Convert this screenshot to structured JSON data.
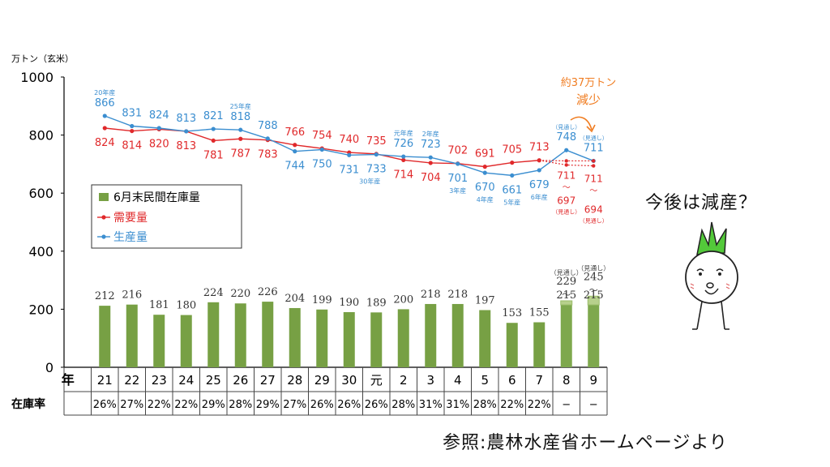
{
  "chart_data": {
    "type": "bar",
    "unit_label": "万トン（玄米）",
    "ylim": [
      0,
      1000
    ],
    "yticks": [
      0,
      200,
      400,
      600,
      800,
      1000
    ],
    "x_header": "年",
    "categories": [
      "21",
      "22",
      "23",
      "24",
      "25",
      "26",
      "27",
      "28",
      "29",
      "30",
      "元",
      "2",
      "3",
      "4",
      "5",
      "6",
      "7",
      "8",
      "9"
    ],
    "legend": [
      "6月末民間在庫量",
      "需要量",
      "生産量"
    ],
    "series": [
      {
        "name": "6月末民間在庫量",
        "values": [
          212,
          216,
          181,
          180,
          224,
          220,
          226,
          204,
          199,
          190,
          189,
          200,
          218,
          218,
          197,
          153,
          155,
          215,
          215
        ]
      },
      {
        "name": "需要量",
        "values": [
          824,
          814,
          820,
          813,
          781,
          787,
          783,
          766,
          754,
          740,
          735,
          714,
          704,
          702,
          691,
          705,
          713,
          null,
          null
        ]
      },
      {
        "name": "生産量",
        "values": [
          866,
          831,
          824,
          813,
          821,
          818,
          788,
          744,
          750,
          731,
          733,
          726,
          723,
          701,
          670,
          661,
          679,
          748,
          711
        ]
      }
    ],
    "stock_range_upper": [
      null,
      null,
      null,
      null,
      null,
      null,
      null,
      null,
      null,
      null,
      null,
      null,
      null,
      null,
      null,
      null,
      null,
      229,
      245
    ],
    "demand_projection": {
      "low": [
        697,
        694
      ],
      "high": [
        711,
        711
      ]
    },
    "stock_ratio_label": "在庫率",
    "stock_ratio": [
      "26%",
      "27%",
      "22%",
      "22%",
      "29%",
      "28%",
      "29%",
      "27%",
      "26%",
      "26%",
      "26%",
      "28%",
      "31%",
      "31%",
      "28%",
      "22%",
      "22%",
      "−",
      "−"
    ],
    "annotations": {
      "prod_20": "20年産",
      "prod_25": "25年産",
      "prod_30": "30年産",
      "prod_gan": "元年産",
      "prod_2": "2年産",
      "prod_3": "3年産",
      "prod_4": "4年産",
      "prod_5": "5年産",
      "prod_6": "6年産",
      "outlook": "（見通し）",
      "tilde": "〜",
      "handwritten_1": "約37万トン",
      "handwritten_2": "減少"
    }
  },
  "side_text": "今後は減産？",
  "source_text": "参照:農林水産省ホームページより",
  "colors": {
    "bar": "#77a044",
    "bar_light": "#b7d08c",
    "demand": "#e0292b",
    "production": "#3b8ed0",
    "handwritten": "#f07d22",
    "axis": "#000000"
  }
}
